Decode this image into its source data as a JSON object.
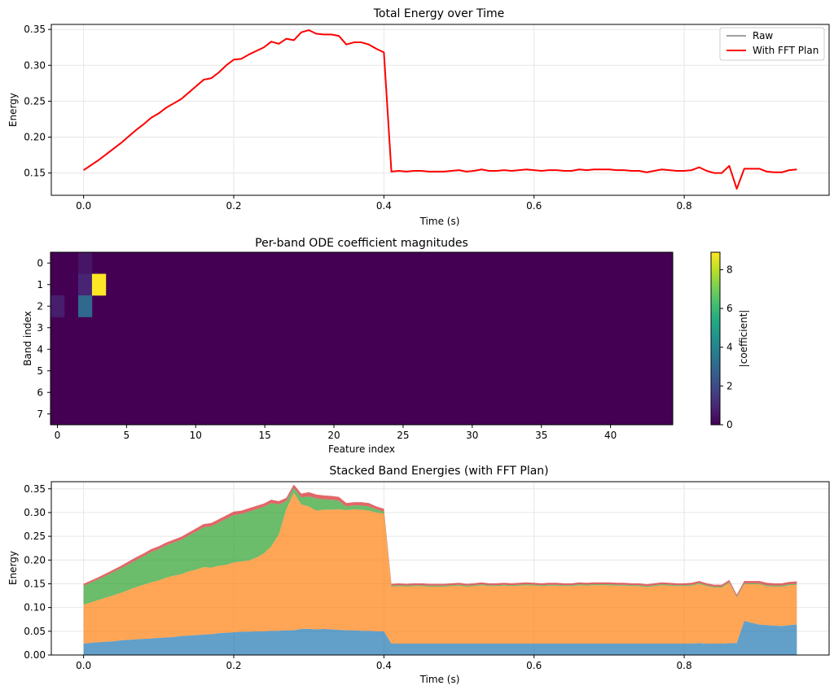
{
  "chart_data": [
    {
      "type": "line",
      "title": "Total Energy over Time",
      "xlabel": "Time (s)",
      "ylabel": "Energy",
      "xlim": [
        -0.043,
        0.993
      ],
      "ylim": [
        0.119,
        0.357
      ],
      "xticks": [
        0.0,
        0.2,
        0.4,
        0.6,
        0.8
      ],
      "xtick_labels": [
        "0.0",
        "0.2",
        "0.4",
        "0.6",
        "0.8"
      ],
      "yticks": [
        0.15,
        0.2,
        0.25,
        0.3,
        0.35
      ],
      "ytick_labels": [
        "0.15",
        "0.20",
        "0.25",
        "0.30",
        "0.35"
      ],
      "grid": true,
      "legend_position": "top-right",
      "x_start": 0.0,
      "x_step": 0.01,
      "series": [
        {
          "name": "Raw",
          "color": "#808080",
          "values": [
            0.154,
            0.161,
            0.168,
            0.176,
            0.184,
            0.192,
            0.201,
            0.21,
            0.218,
            0.227,
            0.233,
            0.241,
            0.247,
            0.253,
            0.262,
            0.271,
            0.28,
            0.282,
            0.29,
            0.3,
            0.308,
            0.309,
            0.315,
            0.32,
            0.325,
            0.333,
            0.33,
            0.337,
            0.335,
            0.346,
            0.349,
            0.344,
            0.343,
            0.343,
            0.341,
            0.329,
            0.332,
            0.332,
            0.329,
            0.323,
            0.318,
            0.152,
            0.153,
            0.152,
            0.153,
            0.153,
            0.152,
            0.152,
            0.152,
            0.153,
            0.154,
            0.152,
            0.153,
            0.155,
            0.153,
            0.153,
            0.154,
            0.153,
            0.154,
            0.155,
            0.154,
            0.153,
            0.154,
            0.154,
            0.153,
            0.153,
            0.155,
            0.154,
            0.155,
            0.155,
            0.155,
            0.154,
            0.154,
            0.153,
            0.153,
            0.151,
            0.153,
            0.155,
            0.154,
            0.153,
            0.153,
            0.154,
            0.158,
            0.153,
            0.15,
            0.15,
            0.16,
            0.128,
            0.156,
            0.156,
            0.156,
            0.152,
            0.151,
            0.151,
            0.154,
            0.155
          ]
        },
        {
          "name": "With FFT Plan",
          "color": "#ff0000",
          "values": [
            0.154,
            0.161,
            0.168,
            0.176,
            0.184,
            0.192,
            0.201,
            0.21,
            0.218,
            0.227,
            0.233,
            0.241,
            0.247,
            0.253,
            0.262,
            0.271,
            0.28,
            0.282,
            0.29,
            0.3,
            0.308,
            0.309,
            0.315,
            0.32,
            0.325,
            0.333,
            0.33,
            0.337,
            0.335,
            0.346,
            0.349,
            0.344,
            0.343,
            0.343,
            0.341,
            0.329,
            0.332,
            0.332,
            0.329,
            0.323,
            0.318,
            0.152,
            0.153,
            0.152,
            0.153,
            0.153,
            0.152,
            0.152,
            0.152,
            0.153,
            0.154,
            0.152,
            0.153,
            0.155,
            0.153,
            0.153,
            0.154,
            0.153,
            0.154,
            0.155,
            0.154,
            0.153,
            0.154,
            0.154,
            0.153,
            0.153,
            0.155,
            0.154,
            0.155,
            0.155,
            0.155,
            0.154,
            0.154,
            0.153,
            0.153,
            0.151,
            0.153,
            0.155,
            0.154,
            0.153,
            0.153,
            0.154,
            0.158,
            0.153,
            0.15,
            0.15,
            0.16,
            0.128,
            0.156,
            0.156,
            0.156,
            0.152,
            0.151,
            0.151,
            0.154,
            0.155
          ]
        }
      ]
    },
    {
      "type": "heatmap",
      "title": "Per-band ODE coefficient magnitudes",
      "xlabel": "Feature index",
      "ylabel": "Band index",
      "colorbar_label": "|coefficient|",
      "colormap": "viridis",
      "vmin": 0,
      "vmax": 8.9,
      "n_rows": 8,
      "n_cols": 45,
      "xticks": [
        0,
        5,
        10,
        15,
        20,
        25,
        30,
        35,
        40
      ],
      "xtick_labels": [
        "0",
        "5",
        "10",
        "15",
        "20",
        "25",
        "30",
        "35",
        "40"
      ],
      "yticks": [
        0,
        1,
        2,
        3,
        4,
        5,
        6,
        7
      ],
      "ytick_labels": [
        "0",
        "1",
        "2",
        "3",
        "4",
        "5",
        "6",
        "7"
      ],
      "colorbar_ticks": [
        0,
        2,
        4,
        6,
        8
      ],
      "colorbar_tick_labels": [
        "0",
        "2",
        "4",
        "6",
        "8"
      ],
      "cells": [
        {
          "row": 0,
          "col": 2,
          "value": 0.5
        },
        {
          "row": 1,
          "col": 2,
          "value": 0.9
        },
        {
          "row": 1,
          "col": 3,
          "value": 8.9
        },
        {
          "row": 2,
          "col": 0,
          "value": 0.7
        },
        {
          "row": 2,
          "col": 2,
          "value": 3.0
        }
      ]
    },
    {
      "type": "area",
      "title": "Stacked Band Energies (with FFT Plan)",
      "xlabel": "Time (s)",
      "ylabel": "Energy",
      "xlim": [
        -0.043,
        0.993
      ],
      "ylim": [
        0,
        0.365
      ],
      "xticks": [
        0.0,
        0.2,
        0.4,
        0.6,
        0.8
      ],
      "xtick_labels": [
        "0.0",
        "0.2",
        "0.4",
        "0.6",
        "0.8"
      ],
      "yticks": [
        0.0,
        0.05,
        0.1,
        0.15,
        0.2,
        0.25,
        0.3,
        0.35
      ],
      "ytick_labels": [
        "0.00",
        "0.05",
        "0.10",
        "0.15",
        "0.20",
        "0.25",
        "0.30",
        "0.35"
      ],
      "grid": true,
      "stacked": true,
      "x_start": 0.0,
      "x_step": 0.01,
      "series": [
        {
          "color": "#1f77b4",
          "values": [
            0.024,
            0.026,
            0.027,
            0.028,
            0.029,
            0.031,
            0.032,
            0.033,
            0.034,
            0.035,
            0.036,
            0.037,
            0.038,
            0.04,
            0.041,
            0.042,
            0.043,
            0.044,
            0.046,
            0.047,
            0.048,
            0.049,
            0.049,
            0.05,
            0.05,
            0.051,
            0.051,
            0.052,
            0.052,
            0.055,
            0.055,
            0.054,
            0.055,
            0.054,
            0.053,
            0.052,
            0.052,
            0.051,
            0.051,
            0.05,
            0.05,
            0.024,
            0.024,
            0.024,
            0.024,
            0.024,
            0.024,
            0.024,
            0.024,
            0.024,
            0.024,
            0.024,
            0.024,
            0.024,
            0.024,
            0.024,
            0.024,
            0.024,
            0.024,
            0.024,
            0.024,
            0.024,
            0.024,
            0.024,
            0.024,
            0.024,
            0.024,
            0.024,
            0.024,
            0.024,
            0.024,
            0.024,
            0.024,
            0.024,
            0.024,
            0.024,
            0.024,
            0.024,
            0.024,
            0.024,
            0.024,
            0.024,
            0.025,
            0.024,
            0.024,
            0.024,
            0.025,
            0.025,
            0.072,
            0.068,
            0.064,
            0.063,
            0.062,
            0.061,
            0.063,
            0.064
          ]
        },
        {
          "color": "#ff7f0e",
          "values": [
            0.082,
            0.085,
            0.089,
            0.093,
            0.097,
            0.1,
            0.105,
            0.11,
            0.114,
            0.118,
            0.121,
            0.126,
            0.129,
            0.13,
            0.135,
            0.138,
            0.142,
            0.14,
            0.142,
            0.143,
            0.147,
            0.148,
            0.15,
            0.155,
            0.164,
            0.178,
            0.203,
            0.255,
            0.29,
            0.262,
            0.258,
            0.25,
            0.251,
            0.252,
            0.254,
            0.253,
            0.255,
            0.255,
            0.253,
            0.25,
            0.248,
            0.12,
            0.121,
            0.12,
            0.121,
            0.121,
            0.12,
            0.12,
            0.12,
            0.121,
            0.122,
            0.12,
            0.121,
            0.123,
            0.121,
            0.121,
            0.122,
            0.121,
            0.122,
            0.123,
            0.122,
            0.121,
            0.122,
            0.122,
            0.121,
            0.121,
            0.123,
            0.122,
            0.123,
            0.123,
            0.123,
            0.122,
            0.122,
            0.121,
            0.121,
            0.119,
            0.121,
            0.123,
            0.122,
            0.121,
            0.121,
            0.122,
            0.125,
            0.121,
            0.118,
            0.118,
            0.127,
            0.096,
            0.077,
            0.081,
            0.085,
            0.082,
            0.082,
            0.083,
            0.084,
            0.084
          ]
        },
        {
          "color": "#2ca02c",
          "values": [
            0.04,
            0.042,
            0.044,
            0.046,
            0.049,
            0.052,
            0.054,
            0.057,
            0.06,
            0.064,
            0.066,
            0.068,
            0.07,
            0.073,
            0.076,
            0.08,
            0.084,
            0.087,
            0.091,
            0.097,
            0.1,
            0.1,
            0.103,
            0.102,
            0.098,
            0.091,
            0.063,
            0.017,
            0.01,
            0.015,
            0.021,
            0.026,
            0.022,
            0.021,
            0.018,
            0.008,
            0.008,
            0.009,
            0.009,
            0.007,
            0.004,
            0.002,
            0.002,
            0.002,
            0.002,
            0.002,
            0.002,
            0.002,
            0.002,
            0.002,
            0.002,
            0.002,
            0.002,
            0.002,
            0.002,
            0.002,
            0.002,
            0.002,
            0.002,
            0.002,
            0.002,
            0.002,
            0.002,
            0.002,
            0.002,
            0.002,
            0.002,
            0.002,
            0.002,
            0.002,
            0.002,
            0.002,
            0.002,
            0.002,
            0.002,
            0.002,
            0.002,
            0.002,
            0.002,
            0.002,
            0.002,
            0.002,
            0.002,
            0.002,
            0.002,
            0.002,
            0.002,
            0.002,
            0.002,
            0.002,
            0.002,
            0.002,
            0.002,
            0.002,
            0.002,
            0.002
          ]
        },
        {
          "color": "#d62728",
          "values": [
            0.004,
            0.004,
            0.004,
            0.005,
            0.005,
            0.005,
            0.006,
            0.006,
            0.006,
            0.006,
            0.006,
            0.006,
            0.006,
            0.006,
            0.006,
            0.007,
            0.007,
            0.007,
            0.007,
            0.007,
            0.007,
            0.007,
            0.007,
            0.007,
            0.007,
            0.007,
            0.007,
            0.007,
            0.007,
            0.008,
            0.009,
            0.008,
            0.008,
            0.008,
            0.008,
            0.007,
            0.007,
            0.007,
            0.007,
            0.006,
            0.006,
            0.004,
            0.004,
            0.004,
            0.004,
            0.004,
            0.004,
            0.004,
            0.004,
            0.004,
            0.004,
            0.004,
            0.004,
            0.004,
            0.004,
            0.004,
            0.004,
            0.004,
            0.004,
            0.004,
            0.004,
            0.004,
            0.004,
            0.004,
            0.004,
            0.004,
            0.004,
            0.004,
            0.004,
            0.004,
            0.004,
            0.004,
            0.004,
            0.004,
            0.004,
            0.004,
            0.004,
            0.004,
            0.004,
            0.004,
            0.004,
            0.004,
            0.004,
            0.004,
            0.004,
            0.004,
            0.004,
            0.004,
            0.005,
            0.005,
            0.005,
            0.005,
            0.005,
            0.005,
            0.005,
            0.005
          ]
        }
      ]
    }
  ]
}
